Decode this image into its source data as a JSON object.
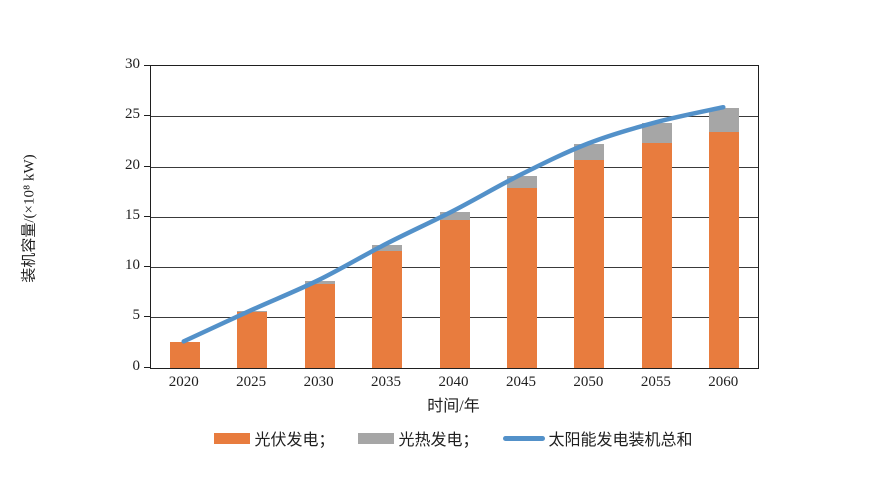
{
  "chart_data": {
    "type": "bar",
    "subtype": "stacked-bars-with-line-overlay",
    "title": "",
    "categories": [
      "2020",
      "2025",
      "2030",
      "2035",
      "2040",
      "2045",
      "2050",
      "2055",
      "2060"
    ],
    "series": [
      {
        "name": "光伏发电",
        "type": "bar",
        "color": "#E87C3E",
        "values": [
          2.5,
          5.5,
          8.3,
          11.6,
          14.7,
          17.9,
          20.6,
          22.3,
          23.4
        ]
      },
      {
        "name": "光热发电",
        "type": "bar",
        "color": "#A6A6A6",
        "values": [
          0,
          0.1,
          0.3,
          0.6,
          0.8,
          1.2,
          1.6,
          2.0,
          2.4
        ]
      },
      {
        "name": "太阳能发电装机总和",
        "type": "line",
        "color": "#5391C9",
        "values": [
          2.5,
          5.6,
          8.6,
          12.2,
          15.5,
          19.1,
          22.2,
          24.3,
          25.8
        ]
      }
    ],
    "xlabel": "时间/年",
    "ylabel": "装机容量/(×10⁸ kW)",
    "ylim": [
      0,
      30
    ],
    "ytick_step": 5,
    "yticks": [
      "0",
      "5",
      "10",
      "15",
      "20",
      "25",
      "30"
    ],
    "grid": "horizontal",
    "legend_position": "bottom",
    "legend": [
      "光伏发电；",
      "光热发电；",
      "太阳能发电装机总和"
    ],
    "colors": {
      "axis": "#1f1f1f",
      "grid": "#3a3a3a",
      "text": "#1f1f1f",
      "background": "#ffffff"
    }
  }
}
